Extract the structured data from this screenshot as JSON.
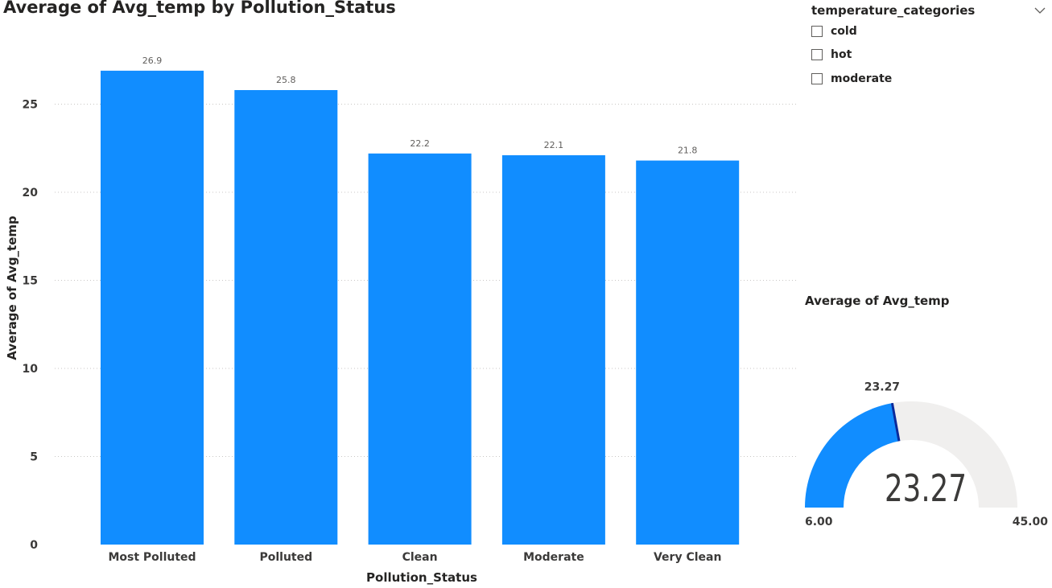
{
  "chart_data": [
    {
      "type": "bar",
      "title": "Average of Avg_temp by Pollution_Status",
      "xlabel": "Pollution_Status",
      "ylabel": "Average of Avg_temp",
      "categories": [
        "Most Polluted",
        "Polluted",
        "Clean",
        "Moderate",
        "Very Clean"
      ],
      "values": [
        26.9,
        25.8,
        22.2,
        22.1,
        21.8
      ],
      "data_labels": [
        "26.9",
        "25.8",
        "22.2",
        "22.1",
        "21.8"
      ],
      "yticks": [
        0,
        5,
        10,
        15,
        20,
        25
      ],
      "ytick_labels": [
        "0",
        "5",
        "10",
        "15",
        "20",
        "25"
      ],
      "ylim": [
        0,
        30
      ],
      "grid": true,
      "color": "#118DFF"
    },
    {
      "type": "gauge",
      "title": "Average of Avg_temp",
      "value": 23.27,
      "value_label": "23.27",
      "target_label": "23.27",
      "min": 6.0,
      "max": 45.0,
      "min_label": "6.00",
      "max_label": "45.00",
      "fill_color": "#118DFF",
      "track_color": "#F0EFEE",
      "target_color": "#0B2A9A"
    }
  ],
  "slicer": {
    "title": "temperature_categories",
    "chevron_icon": "chevron-down-icon",
    "items": [
      {
        "label": "cold",
        "checked": false
      },
      {
        "label": "hot",
        "checked": false
      },
      {
        "label": "moderate",
        "checked": false
      }
    ]
  }
}
